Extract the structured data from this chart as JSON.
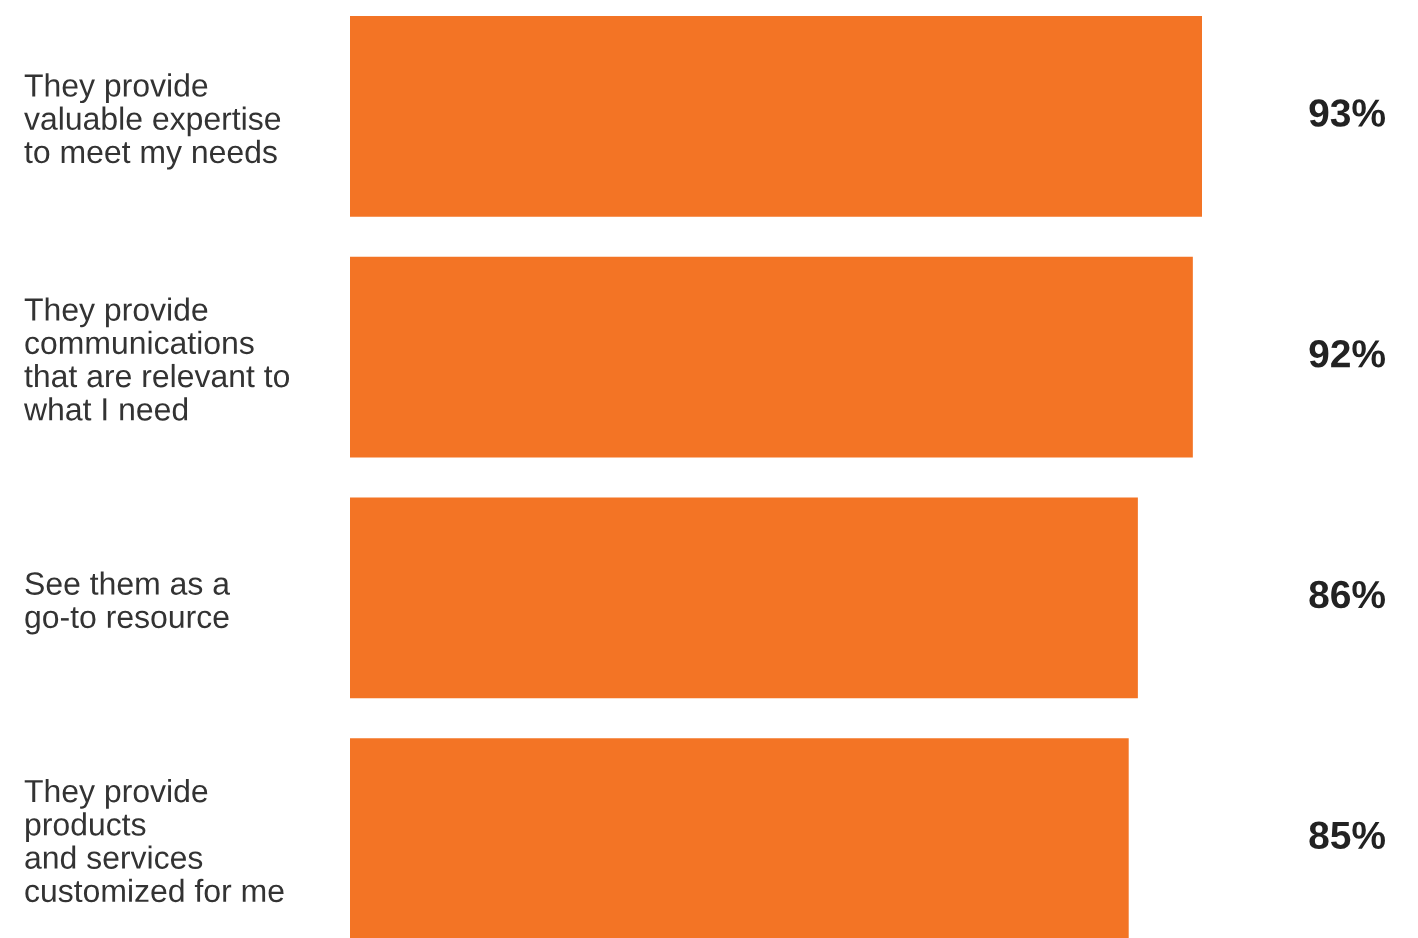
{
  "chart_data": {
    "type": "bar",
    "orientation": "horizontal",
    "categories": [
      "They provide\nvaluable expertise\nto meet my needs",
      "They provide\ncommunications\nthat are relevant to\nwhat I need",
      "See them as a\ngo-to resource",
      "They provide\nproducts\nand services\ncustomized for me"
    ],
    "values": [
      93,
      92,
      86,
      85
    ],
    "color": "#f37425",
    "value_labels": [
      "93%",
      "92%",
      "86%",
      "85%"
    ],
    "tick_labels": "y",
    "grid": false,
    "legend": false
  }
}
